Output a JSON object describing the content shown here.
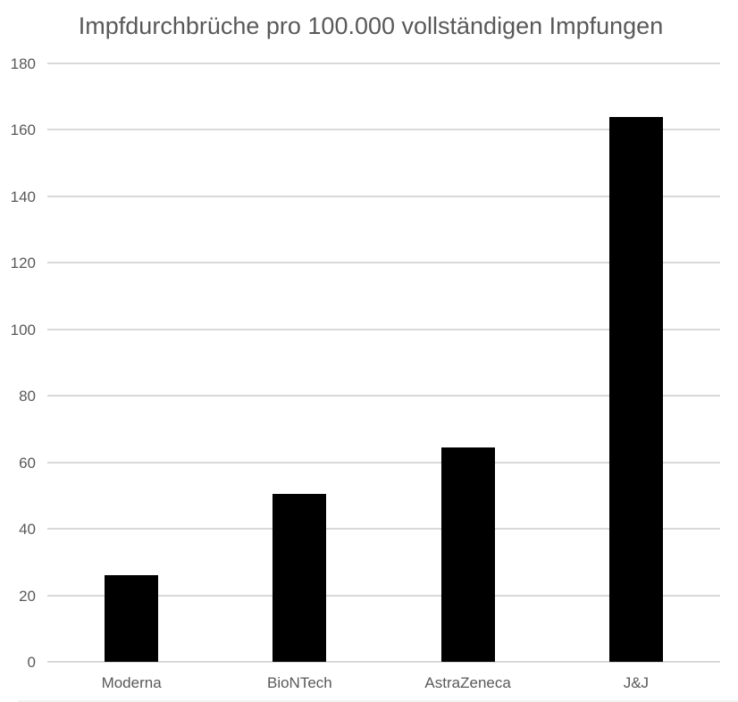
{
  "chart_data": {
    "type": "bar",
    "title": "Impfdurchbrüche pro 100.000 vollständigen Impfungen",
    "categories": [
      "Moderna",
      "BioNTech",
      "AstraZeneca",
      "J&J"
    ],
    "values": [
      26,
      50.5,
      64.5,
      164
    ],
    "xlabel": "",
    "ylabel": "",
    "ylim": [
      0,
      180
    ],
    "yticks": [
      0,
      20,
      40,
      60,
      80,
      100,
      120,
      140,
      160,
      180
    ],
    "grid": true,
    "legend": false,
    "colors": {
      "bar": "#000000",
      "gridline": "#d9d9d9",
      "text": "#595959",
      "background": "#ffffff"
    }
  }
}
